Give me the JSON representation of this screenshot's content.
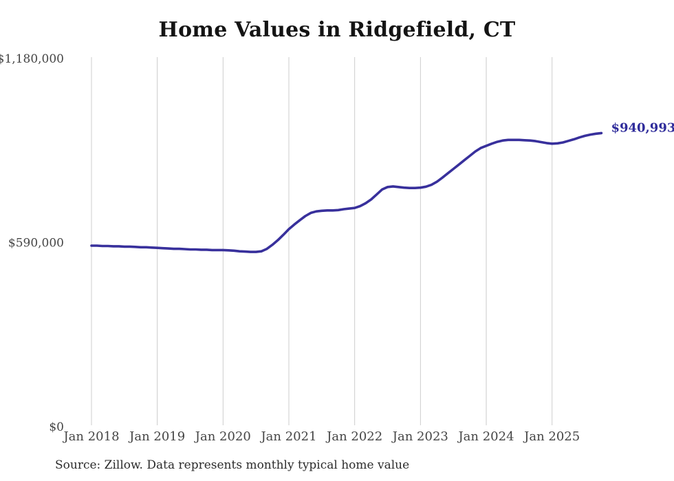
{
  "chart_data": {
    "type": "line",
    "title": "Home Values in Ridgefield, CT",
    "source": "Source: Zillow. Data represents monthly typical home value",
    "series_name": "Monthly typical home value",
    "x": [
      "Jan 2018",
      "Feb 2018",
      "Mar 2018",
      "Apr 2018",
      "May 2018",
      "Jun 2018",
      "Jul 2018",
      "Aug 2018",
      "Sep 2018",
      "Oct 2018",
      "Nov 2018",
      "Dec 2018",
      "Jan 2019",
      "Feb 2019",
      "Mar 2019",
      "Apr 2019",
      "May 2019",
      "Jun 2019",
      "Jul 2019",
      "Aug 2019",
      "Sep 2019",
      "Oct 2019",
      "Nov 2019",
      "Dec 2019",
      "Jan 2020",
      "Feb 2020",
      "Mar 2020",
      "Apr 2020",
      "May 2020",
      "Jun 2020",
      "Jul 2020",
      "Aug 2020",
      "Sep 2020",
      "Oct 2020",
      "Nov 2020",
      "Dec 2020",
      "Jan 2021",
      "Feb 2021",
      "Mar 2021",
      "Apr 2021",
      "May 2021",
      "Jun 2021",
      "Jul 2021",
      "Aug 2021",
      "Sep 2021",
      "Oct 2021",
      "Nov 2021",
      "Dec 2021",
      "Jan 2022",
      "Feb 2022",
      "Mar 2022",
      "Apr 2022",
      "May 2022",
      "Jun 2022",
      "Jul 2022",
      "Aug 2022",
      "Sep 2022",
      "Oct 2022",
      "Nov 2022",
      "Dec 2022",
      "Jan 2023",
      "Feb 2023",
      "Mar 2023",
      "Apr 2023",
      "May 2023",
      "Jun 2023",
      "Jul 2023",
      "Aug 2023",
      "Sep 2023",
      "Oct 2023",
      "Nov 2023",
      "Dec 2023",
      "Jan 2024",
      "Feb 2024",
      "Mar 2024",
      "Apr 2024",
      "May 2024",
      "Jun 2024",
      "Jul 2024",
      "Aug 2024",
      "Sep 2024",
      "Oct 2024",
      "Nov 2024",
      "Dec 2024",
      "Jan 2025",
      "Feb 2025",
      "Mar 2025",
      "Apr 2025",
      "May 2025",
      "Jun 2025",
      "Jul 2025",
      "Aug 2025",
      "Sep 2025",
      "Oct 2025"
    ],
    "values": [
      580000,
      580000,
      579000,
      579000,
      578000,
      578000,
      577000,
      577000,
      576000,
      575000,
      575000,
      574000,
      573000,
      572000,
      571000,
      570000,
      570000,
      569000,
      568000,
      568000,
      567000,
      567000,
      566000,
      566000,
      566000,
      565000,
      564000,
      562000,
      561000,
      560000,
      560000,
      562000,
      570000,
      583000,
      598000,
      615000,
      633000,
      648000,
      662000,
      675000,
      685000,
      690000,
      692000,
      693000,
      693000,
      694000,
      697000,
      699000,
      701000,
      707000,
      716000,
      728000,
      744000,
      760000,
      768000,
      770000,
      768000,
      766000,
      765000,
      765000,
      766000,
      769000,
      775000,
      785000,
      798000,
      812000,
      826000,
      840000,
      854000,
      868000,
      882000,
      893000,
      900000,
      907000,
      913000,
      917000,
      919000,
      919000,
      919000,
      918000,
      917000,
      915000,
      912000,
      909000,
      907000,
      908000,
      911000,
      916000,
      921000,
      927000,
      932000,
      936000,
      939000,
      940993
    ],
    "end_label": "$940,993",
    "end_value": 940993,
    "x_ticks": [
      "Jan 2018",
      "Jan 2019",
      "Jan 2020",
      "Jan 2021",
      "Jan 2022",
      "Jan 2023",
      "Jan 2024",
      "Jan 2025"
    ],
    "y_ticks": [
      {
        "label": "$1,180,000",
        "value": 1180000
      },
      {
        "label": "$590,000",
        "value": 590000
      },
      {
        "label": "$0",
        "value": 0
      }
    ],
    "ylim": [
      0,
      1180000
    ],
    "grid": "vertical-only",
    "legend": "none",
    "line_color": "#38309c",
    "end_label_color": "#2f2c9b",
    "grid_color": "#cccccc",
    "axis_text_color": "#454545"
  }
}
